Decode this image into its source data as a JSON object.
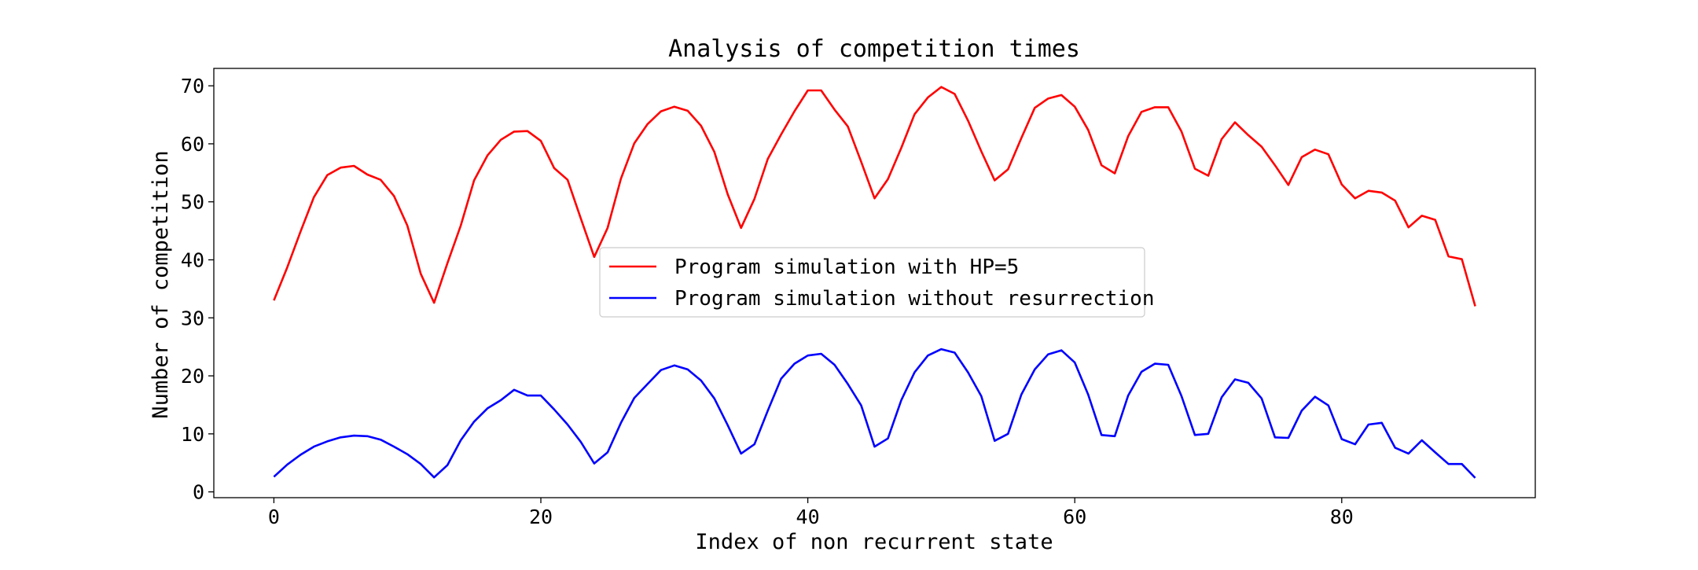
{
  "chart_data": {
    "type": "line",
    "title": "Analysis of competition times",
    "xlabel": "Index of non recurrent state",
    "ylabel": "Number of competition",
    "xlim": [
      -4.5,
      94.5
    ],
    "ylim": [
      -1,
      73
    ],
    "xticks": [
      0,
      20,
      40,
      60,
      80
    ],
    "yticks": [
      0,
      10,
      20,
      30,
      40,
      50,
      60,
      70
    ],
    "grid": false,
    "legend_position": "center",
    "x": [
      0,
      1,
      2,
      3,
      4,
      5,
      6,
      7,
      8,
      9,
      10,
      11,
      12,
      13,
      14,
      15,
      16,
      17,
      18,
      19,
      20,
      21,
      22,
      23,
      24,
      25,
      26,
      27,
      28,
      29,
      30,
      31,
      32,
      33,
      34,
      35,
      36,
      37,
      38,
      39,
      40,
      41,
      42,
      43,
      44,
      45,
      46,
      47,
      48,
      49,
      50,
      51,
      52,
      53,
      54,
      55,
      56,
      57,
      58,
      59,
      60,
      61,
      62,
      63,
      64,
      65,
      66,
      67,
      68,
      69,
      70,
      71,
      72,
      73,
      74,
      75,
      76,
      77,
      78,
      79,
      80,
      81,
      82,
      83,
      84,
      85,
      86,
      87,
      88,
      89,
      90
    ],
    "series": [
      {
        "name": "Program simulation with HP=5",
        "color": "#ff0000",
        "values": [
          33.0,
          38.7,
          44.9,
          50.8,
          54.6,
          55.9,
          56.2,
          54.7,
          53.8,
          51.0,
          45.9,
          37.6,
          32.6,
          39.4,
          45.9,
          53.7,
          58.0,
          60.7,
          62.1,
          62.2,
          60.5,
          55.8,
          53.8,
          47.1,
          40.5,
          45.5,
          54.0,
          60.1,
          63.4,
          65.6,
          66.4,
          65.7,
          63.1,
          58.6,
          51.3,
          45.5,
          50.5,
          57.4,
          61.6,
          65.6,
          69.2,
          69.2,
          65.9,
          63.0,
          56.9,
          50.6,
          53.9,
          59.3,
          65.1,
          68.0,
          69.8,
          68.6,
          64.0,
          58.7,
          53.7,
          55.6,
          61.0,
          66.2,
          67.8,
          68.4,
          66.4,
          62.4,
          56.3,
          54.9,
          61.3,
          65.5,
          66.3,
          66.3,
          62.1,
          55.7,
          54.5,
          60.8,
          63.7,
          61.5,
          59.5,
          56.3,
          52.9,
          57.7,
          59.0,
          58.2,
          53.0,
          50.6,
          51.9,
          51.6,
          50.2,
          45.6,
          47.6,
          46.9,
          40.6,
          40.1,
          32.0
        ]
      },
      {
        "name": "Program simulation without resurrection",
        "color": "#0000ff",
        "values": [
          2.6,
          4.7,
          6.4,
          7.8,
          8.7,
          9.4,
          9.7,
          9.6,
          9.0,
          7.8,
          6.5,
          4.8,
          2.5,
          4.6,
          8.9,
          12.1,
          14.4,
          15.8,
          17.6,
          16.6,
          16.6,
          14.2,
          11.6,
          8.6,
          4.9,
          6.8,
          11.9,
          16.2,
          18.6,
          21.0,
          21.8,
          21.1,
          19.2,
          16.1,
          11.5,
          6.6,
          8.2,
          14.0,
          19.5,
          22.1,
          23.5,
          23.8,
          21.9,
          18.6,
          14.9,
          7.8,
          9.2,
          15.8,
          20.6,
          23.5,
          24.6,
          24.0,
          20.6,
          16.5,
          8.8,
          10.0,
          16.8,
          21.1,
          23.7,
          24.4,
          22.3,
          16.8,
          9.8,
          9.6,
          16.6,
          20.7,
          22.1,
          21.9,
          16.5,
          9.8,
          10.0,
          16.3,
          19.4,
          18.8,
          16.1,
          9.4,
          9.3,
          14.0,
          16.4,
          14.9,
          9.1,
          8.2,
          11.6,
          11.9,
          7.6,
          6.6,
          8.9,
          6.8,
          4.8,
          4.8,
          2.4
        ]
      }
    ]
  }
}
